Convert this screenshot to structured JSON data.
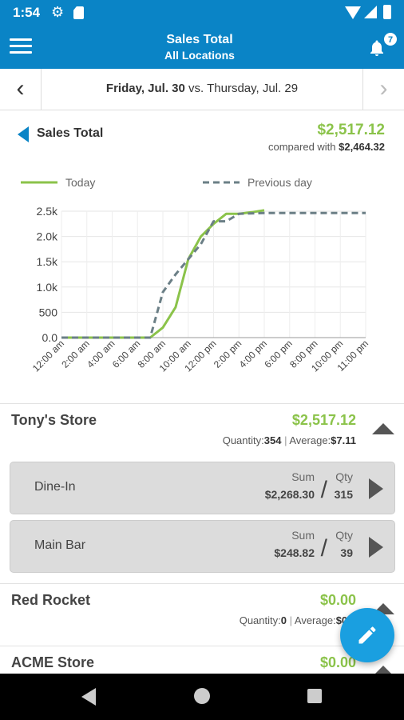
{
  "status_bar": {
    "time": "1:54",
    "icons": [
      "gear-icon",
      "sd-card-icon",
      "wifi-icon",
      "signal-icon",
      "battery-icon"
    ]
  },
  "header": {
    "title": "Sales Total",
    "subtitle": "All Locations",
    "notification_count": "7"
  },
  "date_nav": {
    "current": "Friday, Jul. 30",
    "vs_text": "vs.",
    "compare": "Thursday, Jul. 29"
  },
  "summary": {
    "title": "Sales Total",
    "amount": "$2,517.12",
    "compared_label": "compared with",
    "compared_amount": "$2,464.32"
  },
  "chart_data": {
    "type": "line",
    "x": [
      "12:00 am",
      "2:00 am",
      "4:00 am",
      "6:00 am",
      "8:00 am",
      "10:00 am",
      "12:00 pm",
      "2:00 pm",
      "4:00 pm",
      "6:00 pm",
      "8:00 pm",
      "10:00 pm",
      "11:00 pm"
    ],
    "ytick_labels": [
      "0.0",
      "500",
      "1.0k",
      "1.5k",
      "2.0k",
      "2.5k"
    ],
    "ylim": [
      0,
      2500
    ],
    "grid": true,
    "legend_position": "top",
    "series": [
      {
        "name": "Today",
        "style": "solid",
        "color": "#8bc34a",
        "points": [
          [
            0,
            0
          ],
          [
            1,
            0
          ],
          [
            2,
            0
          ],
          [
            3,
            0
          ],
          [
            3.5,
            0
          ],
          [
            4,
            200
          ],
          [
            4.5,
            600
          ],
          [
            5,
            1550
          ],
          [
            5.5,
            2000
          ],
          [
            6,
            2250
          ],
          [
            6.5,
            2450
          ],
          [
            7,
            2450
          ],
          [
            7.5,
            2480
          ],
          [
            8,
            2517
          ]
        ]
      },
      {
        "name": "Previous day",
        "style": "dashed",
        "color": "#6b7f86",
        "points": [
          [
            0,
            0
          ],
          [
            1,
            0
          ],
          [
            2,
            0
          ],
          [
            3,
            0
          ],
          [
            3.5,
            0
          ],
          [
            4,
            900
          ],
          [
            4.5,
            1250
          ],
          [
            5,
            1550
          ],
          [
            5.5,
            1850
          ],
          [
            6,
            2300
          ],
          [
            6.5,
            2300
          ],
          [
            7,
            2450
          ],
          [
            8,
            2464
          ],
          [
            9,
            2464
          ],
          [
            10,
            2464
          ],
          [
            11,
            2464
          ],
          [
            12,
            2464
          ]
        ]
      }
    ]
  },
  "stores": [
    {
      "name": "Tony's Store",
      "amount": "$2,517.12",
      "qty_label": "Quantity:",
      "qty": "354",
      "sep": "|",
      "avg_label": "Average:",
      "avg": "$7.11",
      "cards": [
        {
          "name": "Dine-In",
          "sum_label": "Sum",
          "qty_label": "Qty",
          "sum": "$2,268.30",
          "slash": "/",
          "qty": "315"
        },
        {
          "name": "Main Bar",
          "sum_label": "Sum",
          "qty_label": "Qty",
          "sum": "$248.82",
          "slash": "/",
          "qty": "39"
        }
      ]
    },
    {
      "name": "Red Rocket",
      "amount": "$0.00",
      "qty_label": "Quantity:",
      "qty": "0",
      "sep": "|",
      "avg_label": "Average:",
      "avg": "$0.0"
    },
    {
      "name": "ACME Store",
      "amount": "$0.00"
    }
  ]
}
